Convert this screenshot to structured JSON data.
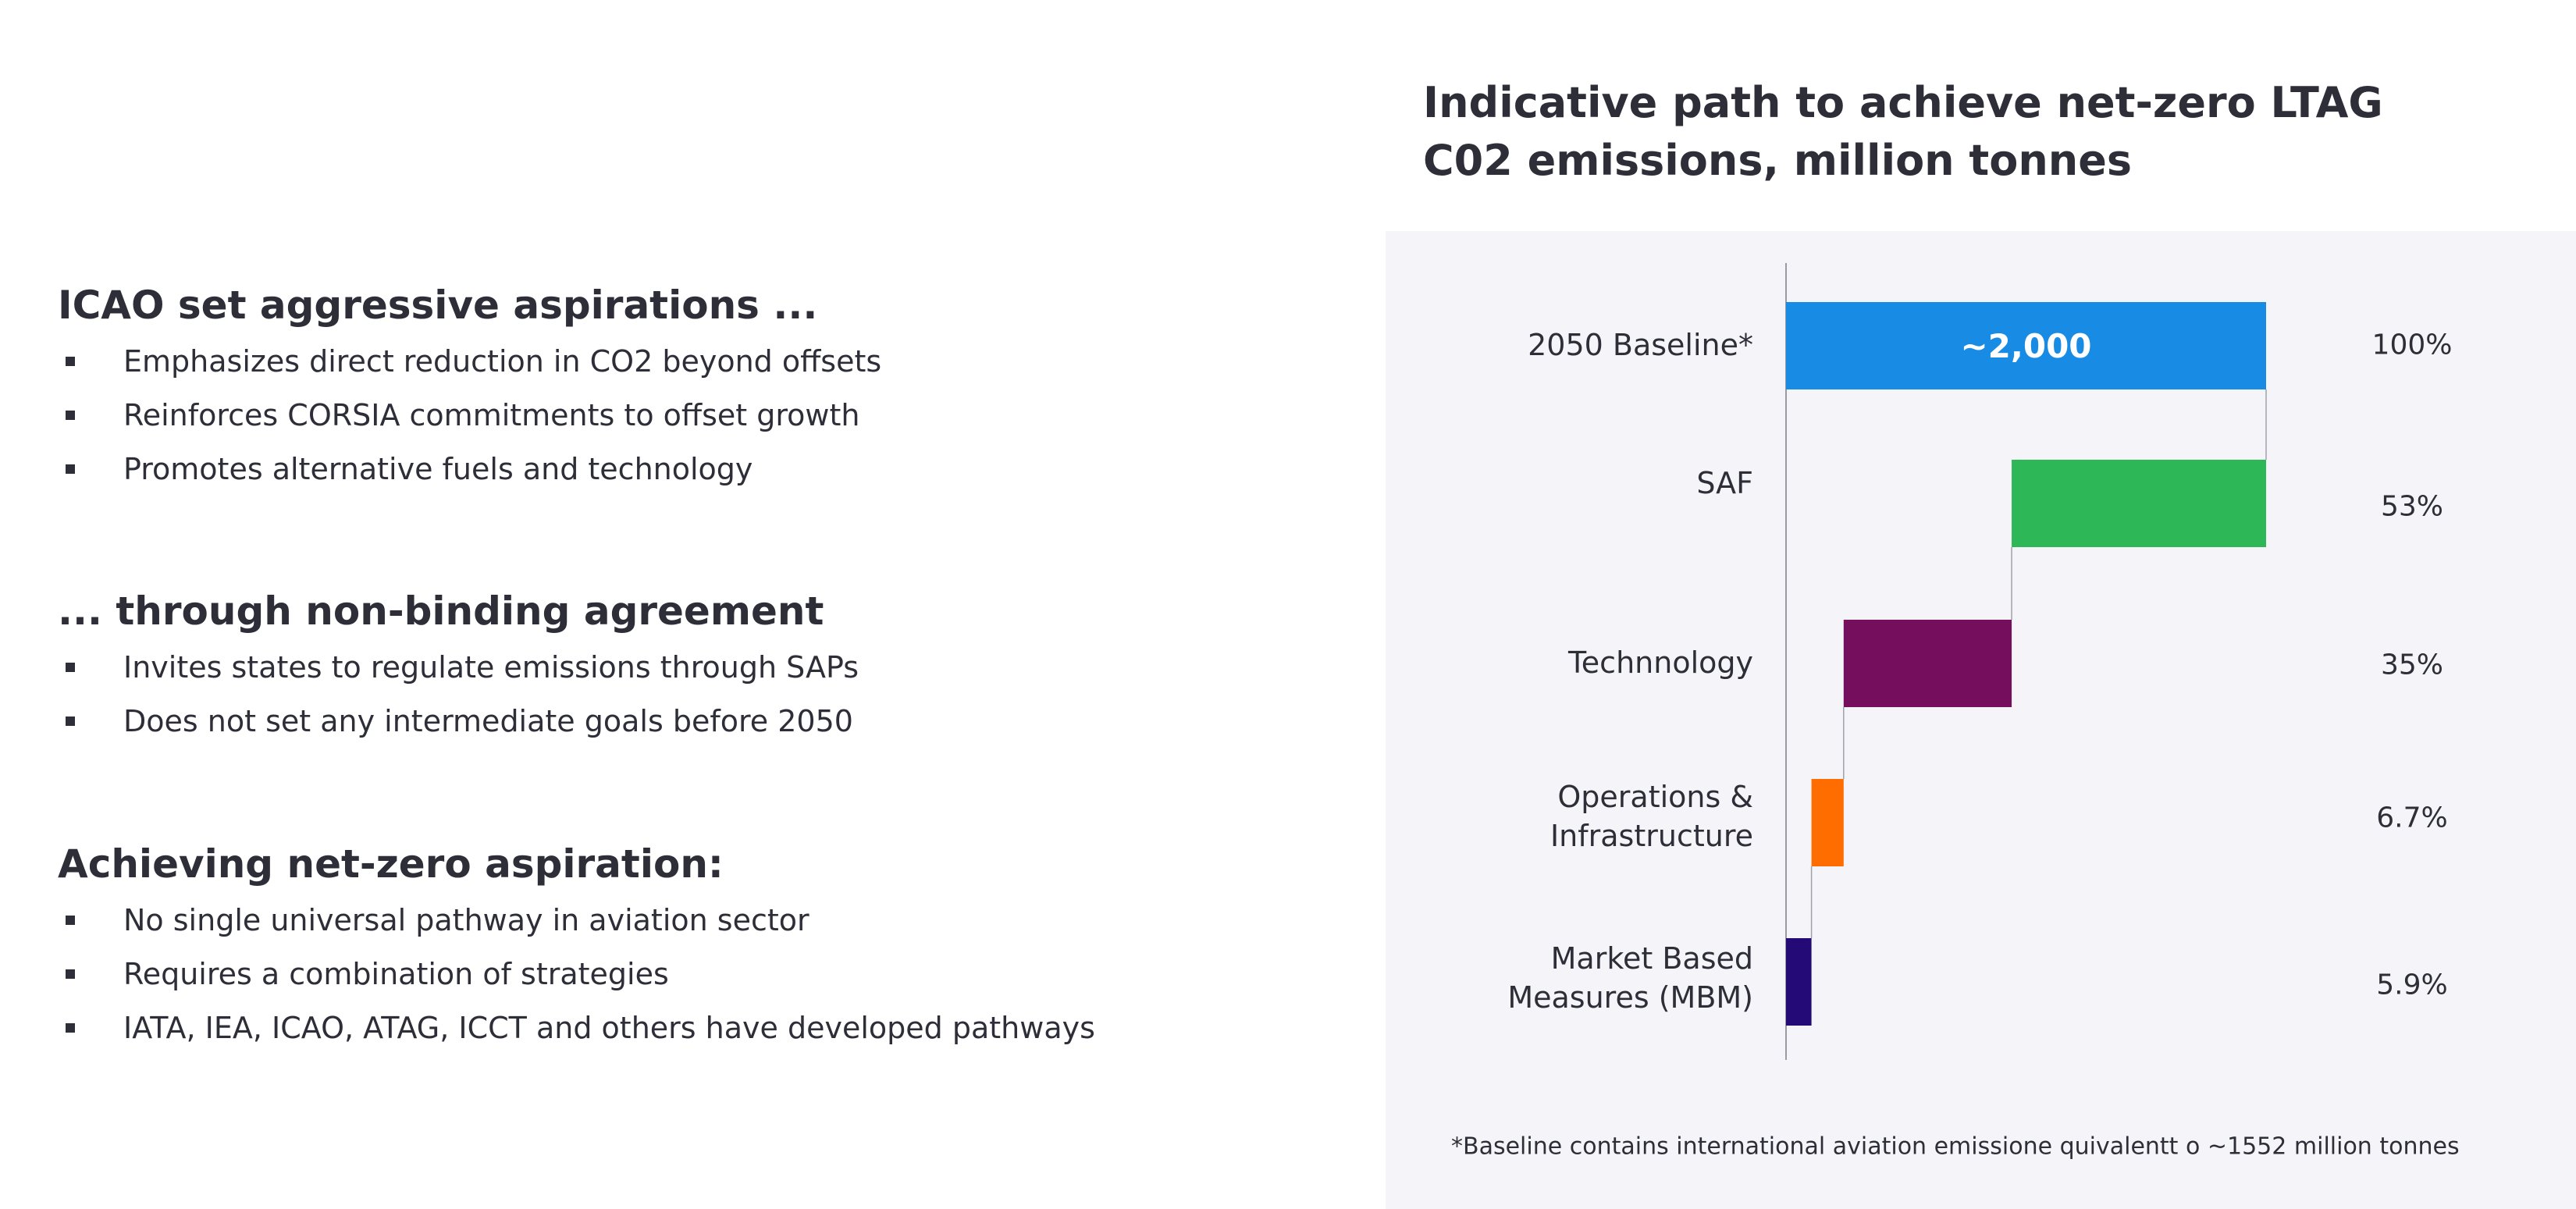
{
  "left": {
    "sections": [
      {
        "heading": "ICAO set aggressive aspirations ...",
        "bullets": [
          "Emphasizes direct reduction in CO2 beyond offsets",
          "Reinforces CORSIA commitments to offset growth",
          "Promotes alternative fuels and technology"
        ]
      },
      {
        "heading": "... through non-binding agreement",
        "bullets": [
          "Invites states to regulate emissions through SAPs",
          "Does not set any intermediate goals before 2050"
        ]
      },
      {
        "heading": "Achieving net-zero aspiration:",
        "bullets": [
          "No single universal pathway in aviation sector",
          "Requires a combination of strategies",
          "IATA, IEA, ICAO, ATAG, ICCT and others have developed pathways"
        ]
      }
    ]
  },
  "chart_data": {
    "type": "bar",
    "subtype": "waterfall-horizontal",
    "title_lines": [
      "Indicative path to achieve net-zero LTAG",
      "C02 emissions, million tonnes"
    ],
    "categories": [
      "2050 Baseline*",
      "SAF",
      "Technnology",
      "Operations & Infrastructure",
      "Market Based Measures (MBM)"
    ],
    "category_lines": [
      [
        "2050 Baseline*"
      ],
      [
        "SAF"
      ],
      [
        "Technnology"
      ],
      [
        "Operations &",
        "Infrastructure"
      ],
      [
        "Market Based",
        "Measures (MBM)"
      ]
    ],
    "values_pct": [
      100,
      53,
      35,
      6.7,
      5.9
    ],
    "pct_labels": [
      "100%",
      "53%",
      "35%",
      "6.7%",
      "5.9%"
    ],
    "bar_data_label": "~2,000",
    "colors": [
      "#188ce5",
      "#2db757",
      "#750e5c",
      "#ff6d00",
      "#230a77"
    ],
    "xlim": [
      0,
      100
    ],
    "grid": false,
    "footnote": "*Baseline contains international aviation emissione quivalentt o ~1552 million tonnes"
  }
}
